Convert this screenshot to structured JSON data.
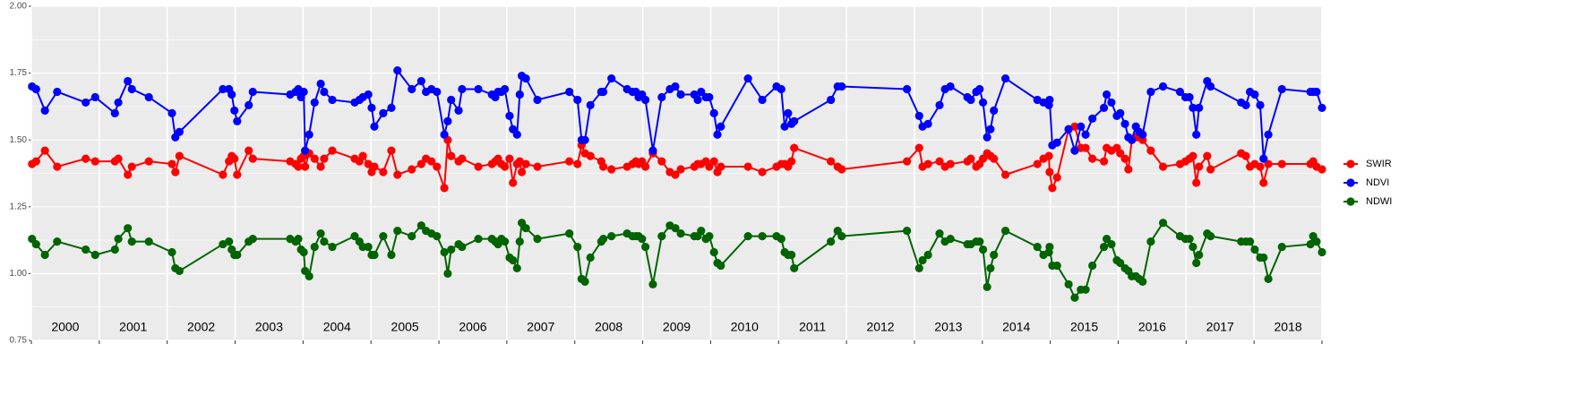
{
  "chart_data": {
    "type": "line",
    "year_labels": [
      "2000",
      "2001",
      "2002",
      "2003",
      "2004",
      "2005",
      "2006",
      "2007",
      "2008",
      "2009",
      "2010",
      "2011",
      "2012",
      "2013",
      "2014",
      "2015",
      "2016",
      "2017",
      "2018"
    ],
    "xlim": [
      2000,
      2019
    ],
    "xticks": [
      2000,
      2001,
      2002,
      2003,
      2004,
      2005,
      2006,
      2007,
      2008,
      2009,
      2010,
      2011,
      2012,
      2013,
      2014,
      2015,
      2016,
      2017,
      2018,
      2019
    ],
    "ylim": [
      0.75,
      2.0
    ],
    "yticks": [
      0.75,
      {
        "value": 1.0,
        "label": "1.00"
      },
      1.25,
      {
        "value": 1.5,
        "label": "1.50"
      },
      1.75,
      {
        "value": 2.0,
        "label": "2.00"
      }
    ],
    "grid": true,
    "legend": "right",
    "x": [
      2000.01,
      2000.07,
      2000.2,
      2000.38,
      2000.8,
      2000.94,
      2001.23,
      2001.28,
      2001.42,
      2001.48,
      2001.73,
      2002.07,
      2002.12,
      2002.18,
      2002.82,
      2002.91,
      2002.95,
      2002.99,
      2003.03,
      2003.2,
      2003.26,
      2003.81,
      2003.89,
      2003.93,
      2003.97,
      2004.01,
      2004.03,
      2004.09,
      2004.17,
      2004.26,
      2004.31,
      2004.43,
      2004.76,
      2004.83,
      2004.88,
      2004.96,
      2005.01,
      2005.05,
      2005.18,
      2005.3,
      2005.39,
      2005.6,
      2005.74,
      2005.81,
      2005.89,
      2005.97,
      2006.08,
      2006.13,
      2006.18,
      2006.29,
      2006.34,
      2006.58,
      2006.78,
      2006.83,
      2006.87,
      2006.92,
      2006.97,
      2007.04,
      2007.09,
      2007.15,
      2007.19,
      2007.22,
      2007.28,
      2007.45,
      2007.92,
      2008.04,
      2008.1,
      2008.15,
      2008.23,
      2008.39,
      2008.42,
      2008.54,
      2008.77,
      2008.85,
      2008.9,
      2008.94,
      2008.99,
      2009.04,
      2009.15,
      2009.28,
      2009.4,
      2009.48,
      2009.56,
      2009.76,
      2009.81,
      2009.86,
      2009.93,
      2009.98,
      2010.05,
      2010.1,
      2010.15,
      2010.55,
      2010.76,
      2010.97,
      2011.04,
      2011.09,
      2011.14,
      2011.19,
      2011.23,
      2011.77,
      2011.87,
      2011.93,
      2012.89,
      2013.07,
      2013.12,
      2013.2,
      2013.37,
      2013.45,
      2013.53,
      2013.78,
      2013.83,
      2013.91,
      2013.96,
      2014.01,
      2014.07,
      2014.12,
      2014.17,
      2014.34,
      2014.81,
      2014.9,
      2014.98,
      2014.99,
      2015.03,
      2015.1,
      2015.27,
      2015.36,
      2015.45,
      2015.52,
      2015.62,
      2015.79,
      2015.83,
      2015.9,
      2015.98,
      2016.03,
      2016.1,
      2016.15,
      2016.2,
      2016.26,
      2016.31,
      2016.36,
      2016.48,
      2016.66,
      2016.91,
      2016.99,
      2017.05,
      2017.1,
      2017.15,
      2017.19,
      2017.31,
      2017.36,
      2017.81,
      2017.88,
      2017.94,
      2018.01,
      2018.09,
      2018.14,
      2018.21,
      2018.41,
      2018.83,
      2018.87,
      2018.92,
      2019.0
    ],
    "series": [
      {
        "name": "SWIR",
        "color": "#ff0000",
        "values": [
          1.41,
          1.42,
          1.46,
          1.4,
          1.43,
          1.42,
          1.42,
          1.43,
          1.37,
          1.4,
          1.42,
          1.41,
          1.38,
          1.44,
          1.37,
          1.42,
          1.44,
          1.43,
          1.37,
          1.46,
          1.43,
          1.42,
          1.41,
          1.4,
          1.43,
          1.44,
          1.4,
          1.45,
          1.43,
          1.4,
          1.43,
          1.46,
          1.43,
          1.42,
          1.44,
          1.41,
          1.38,
          1.4,
          1.38,
          1.46,
          1.37,
          1.39,
          1.41,
          1.43,
          1.42,
          1.4,
          1.32,
          1.5,
          1.44,
          1.42,
          1.43,
          1.4,
          1.41,
          1.42,
          1.43,
          1.41,
          1.4,
          1.43,
          1.34,
          1.41,
          1.42,
          1.38,
          1.41,
          1.4,
          1.42,
          1.41,
          1.48,
          1.45,
          1.44,
          1.42,
          1.4,
          1.39,
          1.4,
          1.41,
          1.42,
          1.41,
          1.42,
          1.4,
          1.45,
          1.42,
          1.38,
          1.37,
          1.39,
          1.4,
          1.41,
          1.41,
          1.42,
          1.4,
          1.42,
          1.38,
          1.4,
          1.4,
          1.38,
          1.4,
          1.41,
          1.41,
          1.4,
          1.42,
          1.47,
          1.42,
          1.4,
          1.39,
          1.42,
          1.47,
          1.4,
          1.41,
          1.42,
          1.4,
          1.41,
          1.42,
          1.43,
          1.4,
          1.41,
          1.43,
          1.45,
          1.44,
          1.43,
          1.37,
          1.41,
          1.43,
          1.44,
          1.38,
          1.32,
          1.36,
          1.54,
          1.55,
          1.47,
          1.47,
          1.43,
          1.42,
          1.47,
          1.46,
          1.47,
          1.45,
          1.43,
          1.39,
          1.5,
          1.51,
          1.51,
          1.5,
          1.46,
          1.4,
          1.41,
          1.42,
          1.43,
          1.44,
          1.34,
          1.4,
          1.44,
          1.39,
          1.45,
          1.44,
          1.4,
          1.41,
          1.4,
          1.34,
          1.41,
          1.41,
          1.41,
          1.42,
          1.4,
          1.39
        ]
      },
      {
        "name": "NDVI",
        "color": "#0000ff",
        "values": [
          1.7,
          1.69,
          1.61,
          1.68,
          1.64,
          1.66,
          1.6,
          1.64,
          1.72,
          1.69,
          1.66,
          1.6,
          1.51,
          1.53,
          1.69,
          1.69,
          1.67,
          1.61,
          1.57,
          1.63,
          1.68,
          1.67,
          1.68,
          1.69,
          1.66,
          1.68,
          1.46,
          1.52,
          1.64,
          1.71,
          1.68,
          1.65,
          1.64,
          1.65,
          1.66,
          1.67,
          1.62,
          1.55,
          1.6,
          1.62,
          1.76,
          1.69,
          1.72,
          1.68,
          1.69,
          1.68,
          1.52,
          1.57,
          1.65,
          1.61,
          1.69,
          1.69,
          1.67,
          1.66,
          1.68,
          1.68,
          1.69,
          1.59,
          1.54,
          1.52,
          1.67,
          1.74,
          1.73,
          1.65,
          1.68,
          1.65,
          1.5,
          1.5,
          1.63,
          1.68,
          1.68,
          1.73,
          1.69,
          1.68,
          1.68,
          1.66,
          1.67,
          1.65,
          1.46,
          1.66,
          1.69,
          1.7,
          1.67,
          1.67,
          1.65,
          1.68,
          1.66,
          1.66,
          1.6,
          1.52,
          1.55,
          1.73,
          1.65,
          1.7,
          1.69,
          1.55,
          1.6,
          1.56,
          1.57,
          1.65,
          1.7,
          1.7,
          1.69,
          1.59,
          1.55,
          1.56,
          1.63,
          1.69,
          1.7,
          1.66,
          1.65,
          1.68,
          1.69,
          1.64,
          1.51,
          1.54,
          1.61,
          1.73,
          1.65,
          1.64,
          1.63,
          1.65,
          1.48,
          1.49,
          1.54,
          1.46,
          1.55,
          1.52,
          1.58,
          1.62,
          1.67,
          1.64,
          1.59,
          1.6,
          1.56,
          1.51,
          1.5,
          1.55,
          1.53,
          1.52,
          1.68,
          1.7,
          1.68,
          1.66,
          1.66,
          1.62,
          1.52,
          1.62,
          1.72,
          1.7,
          1.64,
          1.63,
          1.68,
          1.67,
          1.63,
          1.43,
          1.52,
          1.69,
          1.68,
          1.68,
          1.68,
          1.62
        ]
      },
      {
        "name": "NDWI",
        "color": "#006400",
        "values": [
          1.13,
          1.11,
          1.07,
          1.12,
          1.09,
          1.07,
          1.09,
          1.13,
          1.17,
          1.12,
          1.12,
          1.08,
          1.02,
          1.01,
          1.11,
          1.12,
          1.09,
          1.07,
          1.07,
          1.12,
          1.13,
          1.13,
          1.12,
          1.13,
          1.09,
          1.08,
          1.01,
          0.99,
          1.1,
          1.15,
          1.12,
          1.1,
          1.14,
          1.12,
          1.1,
          1.1,
          1.07,
          1.07,
          1.14,
          1.07,
          1.16,
          1.14,
          1.18,
          1.16,
          1.15,
          1.14,
          1.08,
          1.0,
          1.09,
          1.11,
          1.1,
          1.13,
          1.13,
          1.12,
          1.11,
          1.13,
          1.12,
          1.06,
          1.05,
          1.02,
          1.12,
          1.19,
          1.17,
          1.13,
          1.15,
          1.1,
          0.98,
          0.97,
          1.06,
          1.12,
          1.13,
          1.14,
          1.15,
          1.14,
          1.14,
          1.14,
          1.13,
          1.1,
          0.96,
          1.14,
          1.18,
          1.17,
          1.15,
          1.14,
          1.14,
          1.16,
          1.13,
          1.14,
          1.08,
          1.04,
          1.03,
          1.14,
          1.14,
          1.14,
          1.13,
          1.08,
          1.07,
          1.07,
          1.02,
          1.12,
          1.16,
          1.14,
          1.16,
          1.02,
          1.05,
          1.07,
          1.15,
          1.12,
          1.13,
          1.11,
          1.11,
          1.12,
          1.12,
          1.09,
          0.95,
          1.02,
          1.07,
          1.16,
          1.1,
          1.07,
          1.08,
          1.1,
          1.03,
          1.03,
          0.96,
          0.91,
          0.94,
          0.94,
          1.03,
          1.1,
          1.13,
          1.11,
          1.05,
          1.04,
          1.02,
          1.01,
          0.99,
          0.99,
          0.98,
          0.97,
          1.12,
          1.19,
          1.14,
          1.13,
          1.13,
          1.1,
          1.04,
          1.07,
          1.15,
          1.14,
          1.12,
          1.12,
          1.12,
          1.09,
          1.06,
          1.06,
          0.98,
          1.1,
          1.11,
          1.14,
          1.12,
          1.08
        ]
      }
    ]
  }
}
